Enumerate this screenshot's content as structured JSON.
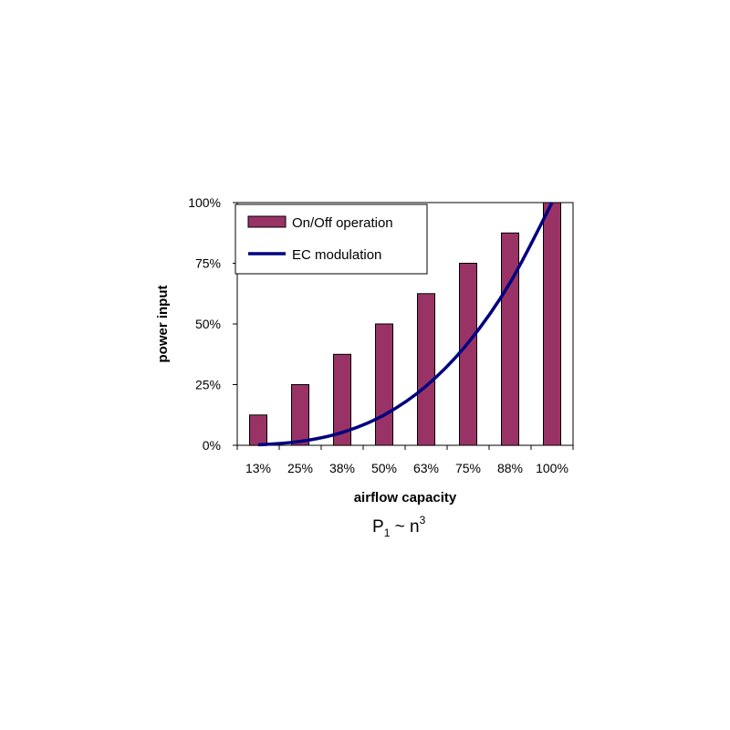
{
  "chart_data": {
    "type": "bar",
    "categories": [
      "13%",
      "25%",
      "38%",
      "50%",
      "63%",
      "75%",
      "88%",
      "100%"
    ],
    "series": [
      {
        "name": "On/Off operation",
        "type": "bar",
        "values": [
          12.5,
          25,
          37.5,
          50,
          62.5,
          75,
          87.5,
          100
        ],
        "color": "#993366"
      },
      {
        "name": "EC modulation",
        "type": "line",
        "values": [
          0.2,
          1.6,
          5.3,
          12.5,
          24.4,
          42.2,
          67.0,
          100
        ],
        "color": "#000080"
      }
    ],
    "xlabel": "airflow capacity",
    "ylabel": "power input",
    "ylim": [
      0,
      100
    ],
    "yticks": [
      "0%",
      "25%",
      "50%",
      "75%",
      "100%"
    ],
    "yticks_values": [
      0,
      25,
      50,
      75,
      100
    ],
    "legend_position": "top-left",
    "grid": false,
    "annotation": {
      "base": "P",
      "sub": "1",
      "middle": " ~ n",
      "sup": "3"
    }
  }
}
